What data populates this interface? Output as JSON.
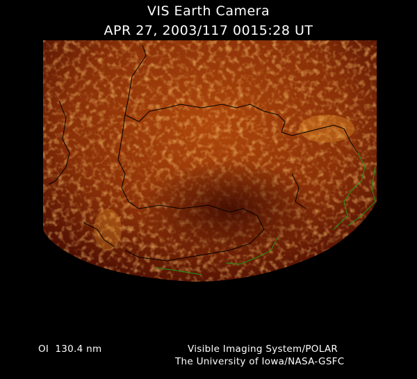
{
  "header": {
    "title": "VIS Earth Camera",
    "timestamp": "APR 27, 2003/117 0015:28 UT"
  },
  "footer": {
    "wavelength": "OI  130.4 nm",
    "credit_line1": "Visible Imaging System/POLAR",
    "credit_line2": "The University of Iowa/NASA-GSFC"
  },
  "image": {
    "colors": {
      "background": "#000000",
      "dim": "#3a0800",
      "mid": "#a0400a",
      "bright": "#f0a030",
      "coastline_day": "#000000",
      "coastline_night": "#1a9a1a"
    }
  }
}
